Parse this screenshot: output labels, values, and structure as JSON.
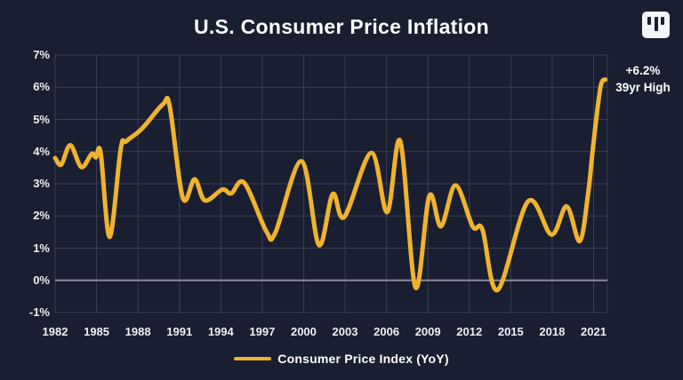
{
  "header": {
    "title": "U.S. Consumer Price Inflation",
    "logo": "chartr-bars-logo"
  },
  "annotation": {
    "line1": "+6.2%",
    "line2": "39yr High"
  },
  "legend": {
    "label": "Consumer Price Index (YoY)"
  },
  "colors": {
    "background": "#191E30",
    "line": "#EFB32D",
    "grid": "#3A3F53",
    "zero_line": "#8A8D99",
    "text": "#FFFFFF"
  },
  "chart_data": {
    "type": "line",
    "title": "U.S. Consumer Price Inflation",
    "xlabel": "",
    "ylabel": "",
    "xlim": [
      1982,
      2022
    ],
    "ylim": [
      -1,
      7
    ],
    "grid": true,
    "legend_position": "bottom",
    "x_ticks": [
      1982,
      1985,
      1988,
      1991,
      1994,
      1997,
      2000,
      2003,
      2006,
      2009,
      2012,
      2015,
      2018,
      2021
    ],
    "x_tick_labels": [
      "1982",
      "1985",
      "1988",
      "1991",
      "1994",
      "1997",
      "2000",
      "2003",
      "2006",
      "2009",
      "2012",
      "2015",
      "2018",
      "2021"
    ],
    "y_tick_values": [
      7,
      6,
      5,
      4,
      3,
      2,
      1,
      0,
      -1
    ],
    "y_tick_labels": [
      "7%",
      "6%",
      "5%",
      "4%",
      "3%",
      "2%",
      "1%",
      "0%",
      "-1%"
    ],
    "annotation": {
      "x": 2021.85,
      "y": 6.2,
      "text": "+6.2% 39yr High"
    },
    "series": [
      {
        "name": "Consumer Price Index (YoY)",
        "color": "#EFB32D",
        "points": [
          [
            1982.0,
            3.8
          ],
          [
            1982.45,
            3.6
          ],
          [
            1983.1,
            4.2
          ],
          [
            1983.9,
            3.52
          ],
          [
            1984.65,
            3.93
          ],
          [
            1984.95,
            3.82
          ],
          [
            1985.3,
            3.96
          ],
          [
            1985.95,
            1.35
          ],
          [
            1986.75,
            4.08
          ],
          [
            1987.15,
            4.32
          ],
          [
            1988.3,
            4.72
          ],
          [
            1989.8,
            5.47
          ],
          [
            1990.3,
            5.4
          ],
          [
            1991.25,
            2.56
          ],
          [
            1992.1,
            3.14
          ],
          [
            1992.85,
            2.48
          ],
          [
            1994.1,
            2.82
          ],
          [
            1994.75,
            2.7
          ],
          [
            1995.7,
            3.03
          ],
          [
            1997.3,
            1.52
          ],
          [
            1997.95,
            1.48
          ],
          [
            1999.85,
            3.7
          ],
          [
            2001.1,
            1.1
          ],
          [
            2002.1,
            2.68
          ],
          [
            2002.95,
            1.97
          ],
          [
            2004.9,
            3.96
          ],
          [
            2006.05,
            2.12
          ],
          [
            2007.0,
            4.32
          ],
          [
            2008.1,
            -0.22
          ],
          [
            2009.1,
            2.62
          ],
          [
            2009.95,
            1.68
          ],
          [
            2011.0,
            2.95
          ],
          [
            2012.25,
            1.67
          ],
          [
            2012.95,
            1.58
          ],
          [
            2014.05,
            -0.3
          ],
          [
            2016.25,
            2.45
          ],
          [
            2017.95,
            1.42
          ],
          [
            2019.05,
            2.3
          ],
          [
            2020.0,
            1.22
          ],
          [
            2020.6,
            2.7
          ],
          [
            2021.0,
            4.3
          ],
          [
            2021.5,
            6.0
          ],
          [
            2021.85,
            6.24
          ]
        ]
      }
    ]
  }
}
